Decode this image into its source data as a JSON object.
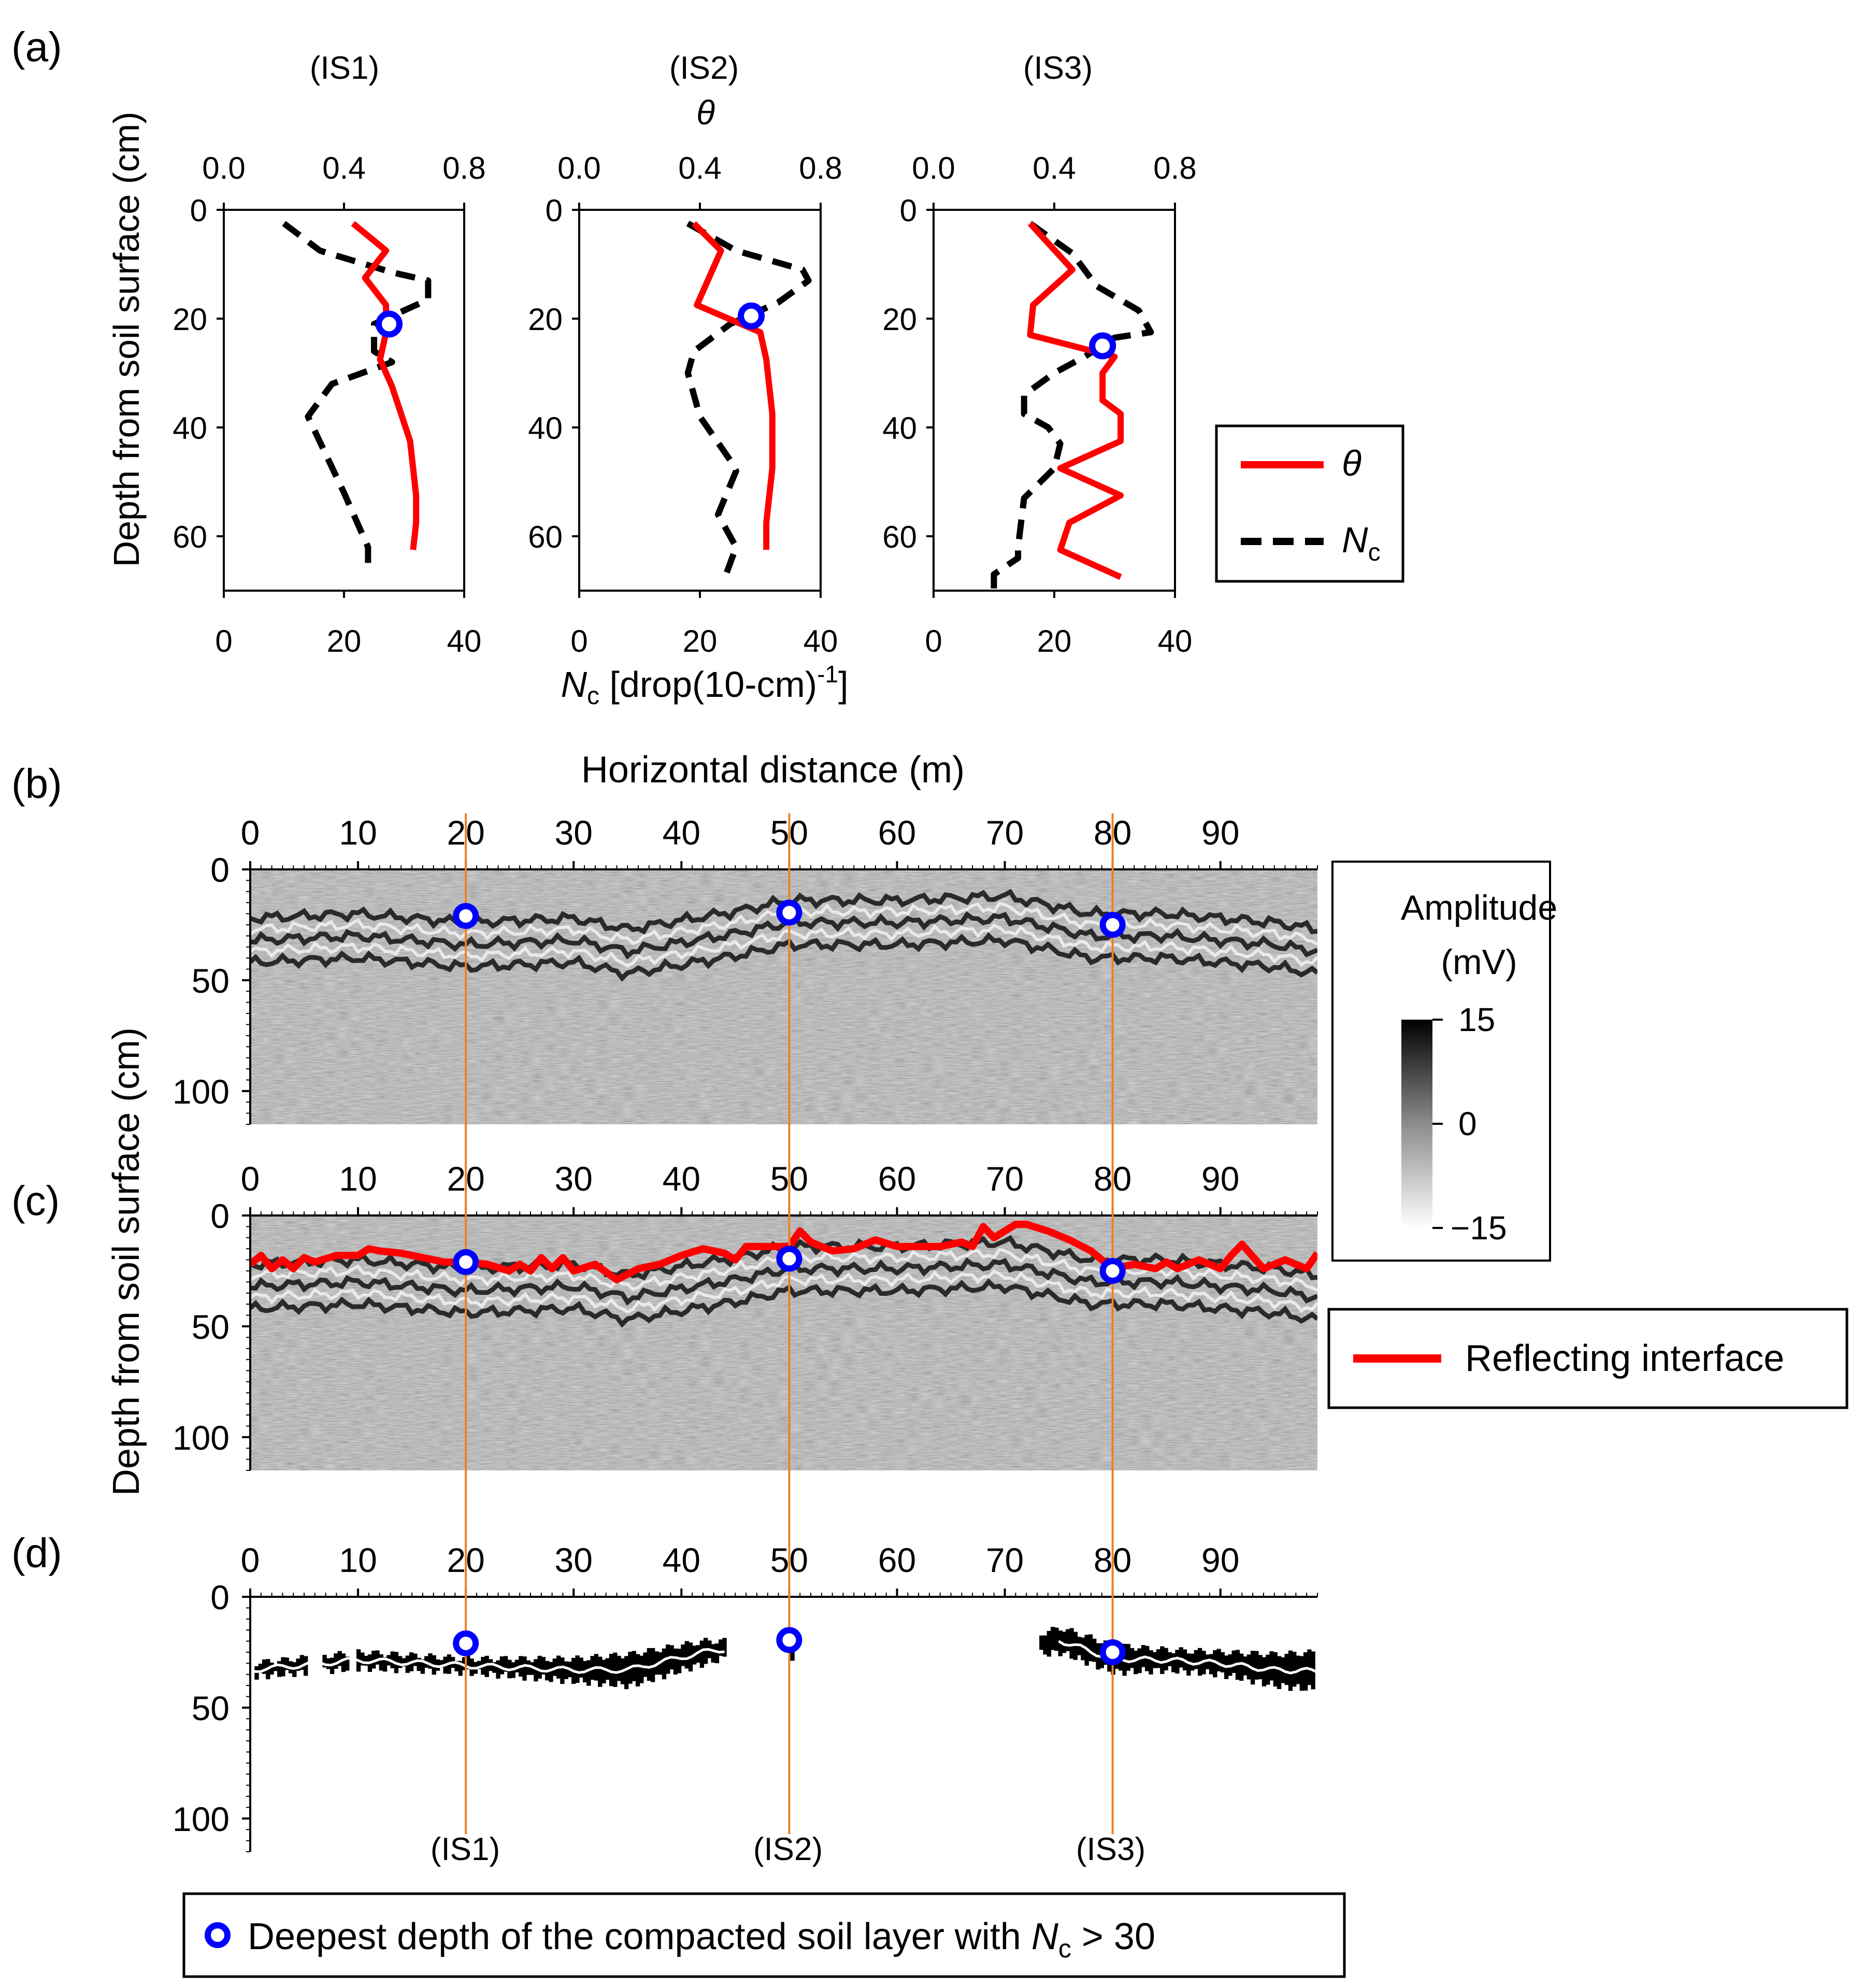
{
  "panel_labels": [
    "(a)",
    "(b)",
    "(c)",
    "(d)"
  ],
  "site_labels": [
    "(IS1)",
    "(IS2)",
    "(IS3)"
  ],
  "panel_a": {
    "theta_axis_title": "θ",
    "theta_ticks": [
      "0.0",
      "0.4",
      "0.8"
    ],
    "nc_ticks": [
      "0",
      "20",
      "40"
    ],
    "depth_ticks": [
      "0",
      "20",
      "40",
      "60"
    ],
    "ylabel": "Depth from soil surface (cm)",
    "xlabel_nc_symbol": "N",
    "xlabel_nc_sub": "c",
    "xlabel_nc_rest": " [drop(10-cm)",
    "xlabel_nc_sup": "-1",
    "xlabel_nc_end": "]",
    "legend": {
      "theta": "θ",
      "nc_symbol": "N",
      "nc_sub": "c"
    }
  },
  "panel_b": {
    "xlabel": "Horizontal distance (m)",
    "x_ticks": [
      "0",
      "10",
      "20",
      "30",
      "40",
      "50",
      "60",
      "70",
      "80",
      "90"
    ],
    "y_ticks": [
      "0",
      "50",
      "100"
    ],
    "colorbar_title_1": "Amplitude",
    "colorbar_title_2": "(mV)",
    "colorbar_ticks": [
      "15",
      "0",
      "−15"
    ]
  },
  "panel_c": {
    "x_ticks": [
      "0",
      "10",
      "20",
      "30",
      "40",
      "50",
      "60",
      "70",
      "80",
      "90"
    ],
    "y_ticks": [
      "0",
      "50",
      "100"
    ],
    "legend_label": "Reflecting interface"
  },
  "panel_d": {
    "x_ticks": [
      "0",
      "10",
      "20",
      "30",
      "40",
      "50",
      "60",
      "70",
      "80",
      "90"
    ],
    "y_ticks": [
      "0",
      "50",
      "100"
    ]
  },
  "bottom_legend": {
    "text": "Deepest depth of the compacted soil layer with ",
    "symbol": "N",
    "sub": "c",
    "rest": " > 30"
  },
  "colors": {
    "theta": "#ff0000",
    "nc": "#000000",
    "marker": "#0000ff",
    "site_line": "#f08020"
  },
  "chart_data": [
    {
      "type": "line",
      "panel": "(a) (IS1)",
      "ylim": [
        0,
        70
      ],
      "theta_xlim": [
        0,
        0.8
      ],
      "nc_xlim": [
        0,
        40
      ],
      "series": [
        {
          "name": "θ",
          "x": [
            0.43,
            0.54,
            0.47,
            0.54,
            0.54,
            0.52,
            0.56,
            0.62,
            0.64,
            0.64,
            0.63
          ],
          "y": [
            2.5,
            7.5,
            12.5,
            17.5,
            22.5,
            27.5,
            32.5,
            42.5,
            52.5,
            57.5,
            62.5
          ]
        },
        {
          "name": "Nc",
          "x": [
            10,
            16,
            28,
            34,
            34,
            25,
            25,
            28,
            18,
            14,
            20,
            24,
            24
          ],
          "y": [
            2.5,
            7.5,
            11.5,
            13,
            16.5,
            21,
            26,
            28,
            32,
            38,
            52,
            62,
            67
          ]
        },
        {
          "name": "deepest_nc30",
          "x": [
            0.55
          ],
          "y": [
            21
          ]
        }
      ]
    },
    {
      "type": "line",
      "panel": "(a) (IS2)",
      "ylim": [
        0,
        70
      ],
      "theta_xlim": [
        0,
        0.8
      ],
      "nc_xlim": [
        0,
        40
      ],
      "series": [
        {
          "name": "θ",
          "x": [
            0.38,
            0.47,
            0.39,
            0.6,
            0.62,
            0.64,
            0.64,
            0.62,
            0.62
          ],
          "y": [
            2.5,
            7.5,
            17.5,
            22.5,
            27.5,
            37.5,
            47.5,
            57.5,
            62.5
          ]
        },
        {
          "name": "Nc",
          "x": [
            18,
            26,
            37,
            38,
            33,
            25,
            19,
            18,
            20,
            25,
            26,
            23,
            26,
            24
          ],
          "y": [
            2.5,
            7.5,
            11,
            13,
            17,
            21,
            26,
            30,
            38,
            46,
            48,
            56,
            62,
            68
          ]
        },
        {
          "name": "deepest_nc30",
          "x": [
            0.57
          ],
          "y": [
            19.5
          ]
        }
      ]
    },
    {
      "type": "line",
      "panel": "(a) (IS3)",
      "ylim": [
        0,
        70
      ],
      "theta_xlim": [
        0,
        0.8
      ],
      "nc_xlim": [
        0,
        40
      ],
      "series": [
        {
          "name": "θ",
          "x": [
            0.32,
            0.46,
            0.33,
            0.32,
            0.6,
            0.56,
            0.56,
            0.62,
            0.62,
            0.42,
            0.62,
            0.45,
            0.42,
            0.62
          ],
          "y": [
            2.5,
            11,
            17.5,
            23,
            27,
            30,
            35,
            37.5,
            42.5,
            47.5,
            52.5,
            57.5,
            62.5,
            67.5
          ]
        },
        {
          "name": "Nc",
          "x": [
            16,
            23,
            27,
            34,
            36,
            30,
            25,
            20,
            15,
            15,
            19,
            21,
            20,
            15,
            14,
            14,
            10,
            10
          ],
          "y": [
            2.5,
            8,
            14,
            18.5,
            22.5,
            23.5,
            27,
            30,
            34,
            37.5,
            40,
            43,
            47.5,
            53,
            62,
            64,
            67,
            70
          ]
        },
        {
          "name": "deepest_nc30",
          "x": [
            0.56
          ],
          "y": [
            25
          ]
        }
      ]
    },
    {
      "type": "heatmap",
      "panel": "(b)",
      "xlabel": "Horizontal distance (m)",
      "ylabel": "Depth from soil surface (cm)",
      "xlim": [
        0,
        99
      ],
      "ylim": [
        0,
        115
      ],
      "colorbar_range_mV": [
        -15,
        15
      ],
      "reflector_band_depth": {
        "x": [
          0,
          10,
          20,
          30,
          35,
          45,
          50,
          60,
          70,
          78,
          85,
          90,
          95,
          99
        ],
        "y": [
          30,
          28,
          32,
          30,
          35,
          27,
          22,
          22,
          20,
          28,
          28,
          30,
          32,
          35
        ]
      },
      "markers": {
        "x": [
          20,
          50,
          80
        ],
        "y": [
          21,
          19.5,
          25
        ]
      }
    },
    {
      "type": "line",
      "panel": "(c)",
      "xlim": [
        0,
        99
      ],
      "ylim": [
        0,
        115
      ],
      "series": [
        {
          "name": "Reflecting interface",
          "x": [
            0,
            1,
            2,
            3,
            4,
            5,
            6,
            8,
            10,
            11,
            12,
            14,
            16,
            18,
            20,
            22,
            24,
            25,
            26,
            27,
            28,
            29,
            30,
            32,
            34,
            36,
            38,
            40,
            42,
            44,
            45,
            46,
            48,
            50,
            51,
            52,
            53,
            54,
            56,
            58,
            60,
            62,
            64,
            66,
            67,
            68,
            69,
            70,
            71,
            72,
            74,
            76,
            78,
            80,
            82,
            84,
            85,
            86,
            88,
            90,
            91,
            92,
            94,
            96,
            98,
            99
          ],
          "y": [
            22,
            18,
            24,
            20,
            24,
            19,
            21,
            18,
            18,
            15,
            16,
            17,
            19,
            21,
            21,
            22,
            25,
            22,
            25,
            19,
            24,
            19,
            25,
            22,
            29,
            24,
            22,
            18,
            15,
            17,
            20,
            14,
            14,
            14,
            7,
            12,
            14,
            16,
            15,
            11,
            14,
            14,
            14,
            12,
            14,
            5,
            10,
            7,
            4,
            4,
            7,
            11,
            16,
            24,
            22,
            24,
            21,
            24,
            20,
            24,
            18,
            13,
            24,
            20,
            24,
            17
          ]
        }
      ],
      "markers": {
        "x": [
          20,
          50,
          80
        ],
        "y": [
          21,
          19.5,
          25
        ]
      }
    },
    {
      "type": "heatmap",
      "panel": "(d)",
      "xlim": [
        0,
        99
      ],
      "ylim": [
        0,
        115
      ],
      "black_regions_depth": {
        "x": [
          0,
          10,
          20,
          30,
          35,
          42,
          45,
          55,
          65,
          75,
          80,
          85,
          90,
          95,
          99
        ],
        "top": [
          30,
          25,
          28,
          28,
          26,
          20,
          20,
          26,
          28,
          14,
          22,
          24,
          25,
          26,
          25
        ],
        "bottom": [
          36,
          32,
          34,
          38,
          40,
          30,
          26,
          28,
          29,
          25,
          34,
          33,
          35,
          40,
          42
        ]
      },
      "markers": {
        "x": [
          20,
          50,
          80
        ],
        "y": [
          21,
          19.5,
          25
        ]
      }
    }
  ]
}
